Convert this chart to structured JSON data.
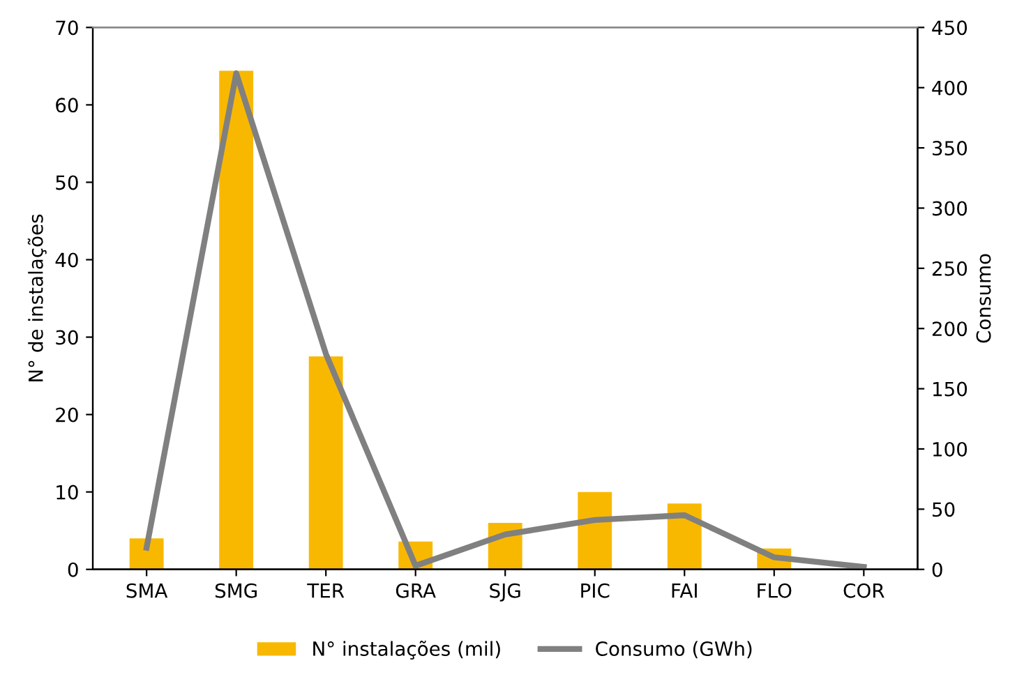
{
  "chart_data": {
    "type": "bar",
    "categories": [
      "SMA",
      "SMG",
      "TER",
      "GRA",
      "SJG",
      "PIC",
      "FAI",
      "FLO",
      "COR"
    ],
    "ylabel": "N° de instalações",
    "y2label": "Consumo",
    "ylim": [
      0,
      70
    ],
    "yticks": [
      0,
      10,
      20,
      30,
      40,
      50,
      60,
      70
    ],
    "y2lim": [
      0,
      450
    ],
    "y2ticks": [
      0,
      50,
      100,
      150,
      200,
      250,
      300,
      350,
      400,
      450
    ],
    "grid": false,
    "legend": "bottom",
    "series": [
      {
        "name": "N° instalações (mil)",
        "color": "#f9b800",
        "values": [
          4.0,
          64.4,
          27.5,
          3.6,
          6.0,
          10.0,
          8.5,
          2.7,
          null
        ]
      },
      {
        "name": "Consumo (GWh)",
        "type": "line",
        "axis": "y2",
        "color": "#808080",
        "values": [
          18,
          412,
          179,
          3,
          29,
          41,
          45,
          10,
          2
        ]
      }
    ]
  }
}
